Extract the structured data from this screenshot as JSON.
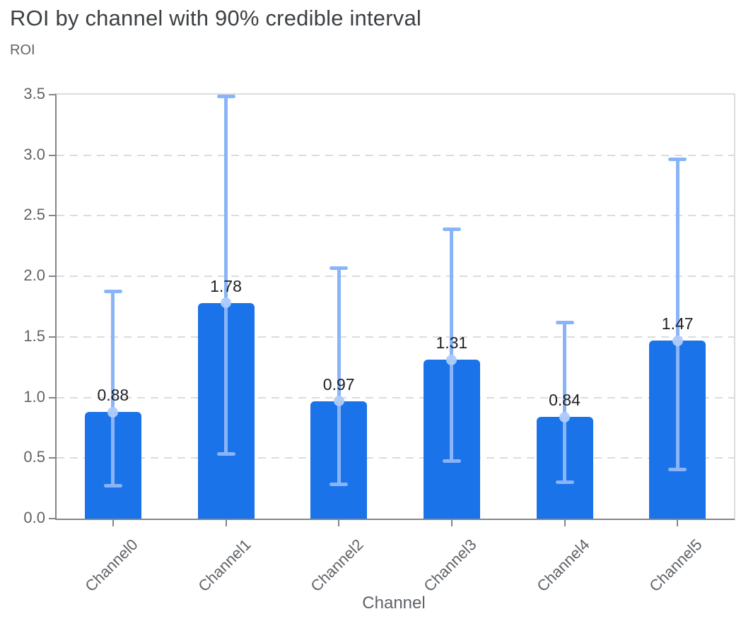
{
  "header": {
    "title": "ROI by channel with 90% credible interval"
  },
  "chart": {
    "y_axis_title": "ROI",
    "x_axis_title": "Channel"
  },
  "chart_data": {
    "type": "bar",
    "title": "ROI by channel with 90% credible interval",
    "xlabel": "Channel",
    "ylabel": "ROI",
    "categories": [
      "Channel0",
      "Channel1",
      "Channel2",
      "Channel3",
      "Channel4",
      "Channel5"
    ],
    "values": [
      0.88,
      1.78,
      0.97,
      1.31,
      0.84,
      1.47
    ],
    "value_labels": [
      "0.88",
      "1.78",
      "0.97",
      "1.31",
      "0.84",
      "1.47"
    ],
    "error_low": [
      0.27,
      0.53,
      0.28,
      0.47,
      0.3,
      0.4
    ],
    "error_high": [
      1.88,
      3.49,
      2.07,
      2.39,
      1.62,
      2.97
    ],
    "error_interval": "90% credible interval",
    "y_ticks": [
      0.0,
      0.5,
      1.0,
      1.5,
      2.0,
      2.5,
      3.0,
      3.5
    ],
    "y_tick_labels": [
      "0.0",
      "0.5",
      "1.0",
      "1.5",
      "2.0",
      "2.5",
      "3.0",
      "3.5"
    ],
    "ylim": [
      0,
      3.5
    ],
    "grid": "horizontal-dashed",
    "legend": "none",
    "colors": {
      "bar": "#1a73e8",
      "error_bar": "#8ab4f8",
      "mean_marker": "#aecbfa",
      "gridline": "#dadce0",
      "axis_line": "#80868b",
      "tick_label": "#5f6368",
      "value_label": "#202124",
      "title": "#3c4043"
    }
  }
}
